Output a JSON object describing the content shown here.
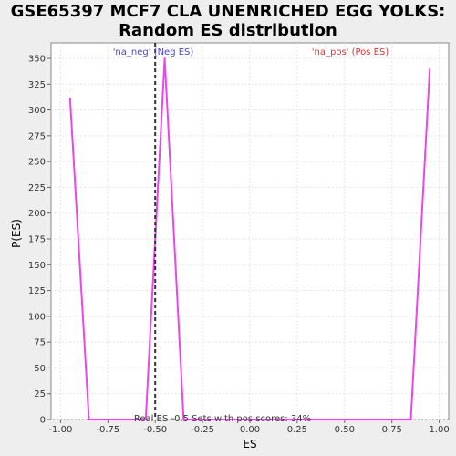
{
  "chart_data": {
    "type": "line",
    "title_line1": "GSE65397 MCF7 CLA UNENRICHED EGG YOLKS:",
    "title_line2": "Random ES distribution",
    "xlabel": "ES",
    "ylabel": "P(ES)",
    "xlim": [
      -1.05,
      1.05
    ],
    "ylim": [
      0,
      365
    ],
    "x_ticks": [
      -1.0,
      -0.75,
      -0.5,
      -0.25,
      0.0,
      0.25,
      0.5,
      0.75,
      1.0
    ],
    "x_tick_labels": [
      "-1.00",
      "-0.75",
      "-0.50",
      "-0.25",
      "0.00",
      "0.25",
      "0.50",
      "0.75",
      "1.00"
    ],
    "y_ticks": [
      0,
      25,
      50,
      75,
      100,
      125,
      150,
      175,
      200,
      225,
      250,
      275,
      300,
      325,
      350
    ],
    "y_tick_labels": [
      "0",
      "25",
      "50",
      "75",
      "100",
      "125",
      "150",
      "175",
      "200",
      "225",
      "250",
      "275",
      "300",
      "325",
      "350"
    ],
    "grid": true,
    "series": [
      {
        "color": "#ee44ee",
        "x": [
          -0.95,
          -0.85,
          -0.55,
          -0.45,
          -0.35,
          0.85,
          0.95
        ],
        "y": [
          312,
          0,
          0,
          350,
          0,
          0,
          340
        ]
      }
    ],
    "real_es_line": {
      "x": -0.5,
      "color": "#333333"
    },
    "annotations": {
      "neg": {
        "text": "'na_neg' (Neg ES)",
        "color": "#4444cc"
      },
      "pos": {
        "text": "'na_pos' (Pos ES)",
        "color": "#dd3333"
      },
      "footer": {
        "text": "Real ES -0.5 Sets with pos scores: 34%",
        "color": "#333333"
      }
    }
  }
}
